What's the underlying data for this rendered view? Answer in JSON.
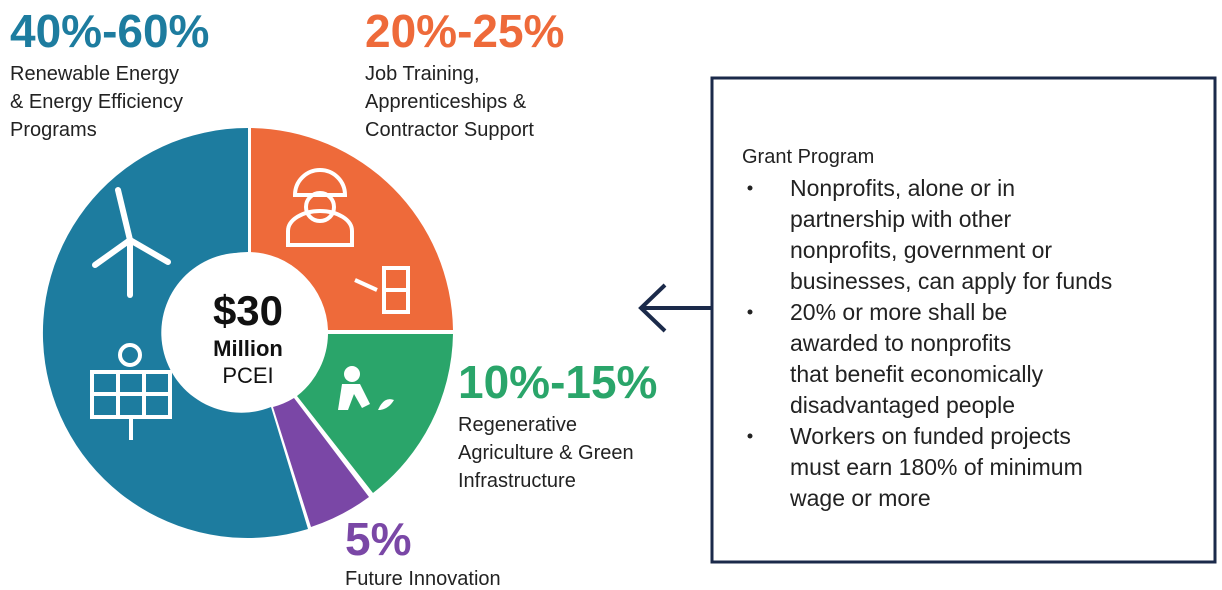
{
  "center": {
    "amount": "$30",
    "unit": "Million",
    "name": "PCEI"
  },
  "segments": [
    {
      "share": "40%-60%",
      "lines": [
        "Renewable Energy",
        "& Energy Efficiency",
        "Programs"
      ]
    },
    {
      "share": "20%-25%",
      "lines": [
        "Job Training,",
        "Apprenticeships &",
        "Contractor Support"
      ]
    },
    {
      "share": "10%-15%",
      "lines": [
        "Regenerative",
        "Agriculture & Green",
        "Infrastructure"
      ]
    },
    {
      "share": "5%",
      "lines": [
        "Future Innovation"
      ]
    }
  ],
  "grant": {
    "title": "Grant Program",
    "bullets": [
      [
        "Nonprofits, alone or in",
        "partnership with other",
        "nonprofits, government or",
        "businesses, can apply for funds"
      ],
      [
        "20% or more shall be",
        "awarded to nonprofits",
        "that benefit economically",
        "disadvantaged people"
      ],
      [
        "Workers on funded projects",
        "must earn 180% of minimum",
        "wage or more"
      ]
    ]
  }
}
